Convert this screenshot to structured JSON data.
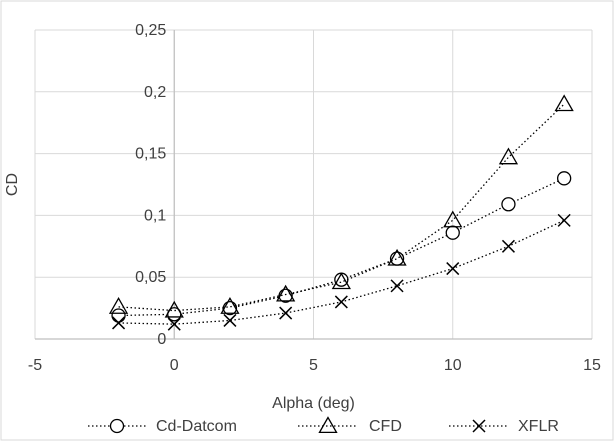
{
  "chart_data": {
    "type": "scatter",
    "title": "",
    "xlabel": "Alpha (deg)",
    "ylabel": "CD",
    "xlim": [
      -5,
      15
    ],
    "ylim": [
      0,
      0.25
    ],
    "x_ticks": [
      -5,
      0,
      5,
      10,
      15
    ],
    "x_tick_labels": [
      "-5",
      "0",
      "5",
      "10",
      "15"
    ],
    "y_ticks": [
      0,
      0.05,
      0.1,
      0.15,
      0.2,
      0.25
    ],
    "y_tick_labels": [
      "0",
      "0,05",
      "0,1",
      "0,15",
      "0,2",
      "0,25"
    ],
    "grid": true,
    "legend_position": "bottom",
    "series": [
      {
        "name": "Cd-Datcom",
        "marker": "circle",
        "line": "dotted",
        "color": "#000000",
        "x": [
          -2,
          0,
          2,
          4,
          6,
          8,
          10,
          12,
          14
        ],
        "y": [
          0.019,
          0.02,
          0.025,
          0.035,
          0.048,
          0.065,
          0.086,
          0.109,
          0.13
        ]
      },
      {
        "name": "CFD",
        "marker": "triangle",
        "line": "dotted",
        "color": "#000000",
        "x": [
          -2,
          0,
          2,
          4,
          6,
          8,
          10,
          12,
          14
        ],
        "y": [
          0.026,
          0.023,
          0.026,
          0.036,
          0.046,
          0.065,
          0.096,
          0.147,
          0.19
        ]
      },
      {
        "name": "XFLR",
        "marker": "cross",
        "line": "dotted",
        "color": "#000000",
        "x": [
          -2,
          0,
          2,
          4,
          6,
          8,
          10,
          12,
          14
        ],
        "y": [
          0.013,
          0.012,
          0.015,
          0.021,
          0.03,
          0.043,
          0.057,
          0.075,
          0.096
        ]
      }
    ]
  }
}
